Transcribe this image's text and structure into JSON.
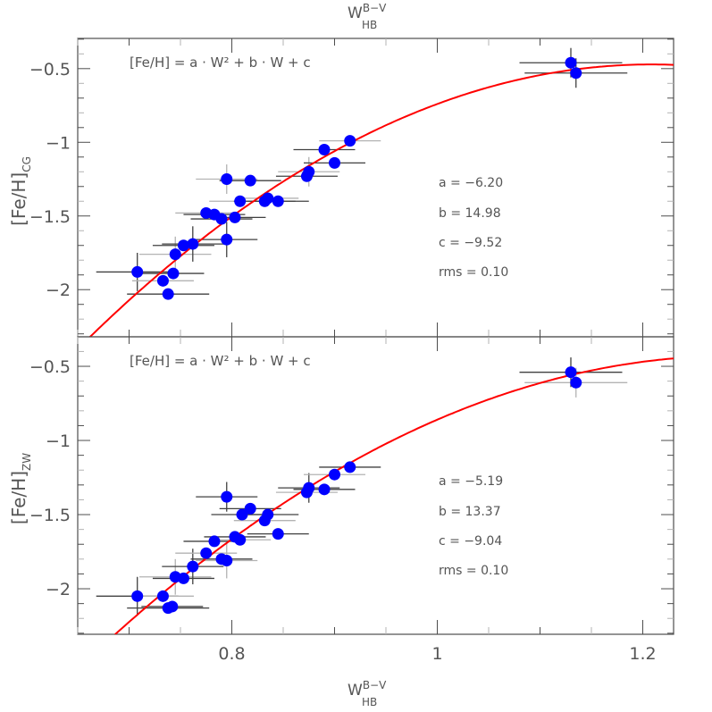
{
  "chart_data": [
    {
      "type": "scatter",
      "panel": "top",
      "title": "",
      "xlabel_top": "W_HB^(B-V)",
      "xlabel": "W_HB^(B-V)",
      "ylabel": "[Fe/H]_CG",
      "xlim": [
        0.65,
        1.23
      ],
      "ylim": [
        -2.32,
        -0.295
      ],
      "x_ticks": [
        0.8,
        1,
        1.2
      ],
      "x_tick_labels": [
        "0.8",
        "1",
        "1.2"
      ],
      "y_ticks": [
        -0.5,
        -1,
        -1.5,
        -2
      ],
      "y_tick_labels": [
        "−0.5",
        "−1",
        "−1.5",
        "−2"
      ],
      "equation": "[Fe/H] = a · W² + b · W + c",
      "fit": {
        "a": -6.2,
        "b": 14.98,
        "c": -9.52,
        "rms": 0.1
      },
      "fit_labels": [
        "a = −6.20",
        "b = 14.98",
        "c = −9.52",
        "rms = 0.10"
      ],
      "points": [
        {
          "x": 0.708,
          "y": -1.88,
          "xerr": 0.04,
          "yerr": 0.13
        },
        {
          "x": 0.733,
          "y": -1.94,
          "xerr": 0.03,
          "yerr": 0.0
        },
        {
          "x": 0.738,
          "y": -2.03,
          "xerr": 0.04,
          "yerr": 0.0
        },
        {
          "x": 0.743,
          "y": -1.89,
          "xerr": 0.03,
          "yerr": 0.0
        },
        {
          "x": 0.745,
          "y": -1.76,
          "xerr": 0.035,
          "yerr": 0.12
        },
        {
          "x": 0.753,
          "y": -1.7,
          "xerr": 0.03,
          "yerr": 0.0
        },
        {
          "x": 0.762,
          "y": -1.69,
          "xerr": 0.03,
          "yerr": 0.12
        },
        {
          "x": 0.775,
          "y": -1.48,
          "xerr": 0.03,
          "yerr": 0.0
        },
        {
          "x": 0.783,
          "y": -1.49,
          "xerr": 0.03,
          "yerr": 0.0
        },
        {
          "x": 0.79,
          "y": -1.52,
          "xerr": 0.03,
          "yerr": 0.0
        },
        {
          "x": 0.795,
          "y": -1.25,
          "xerr": 0.03,
          "yerr": 0.1
        },
        {
          "x": 0.795,
          "y": -1.66,
          "xerr": 0.03,
          "yerr": 0.12
        },
        {
          "x": 0.803,
          "y": -1.51,
          "xerr": 0.03,
          "yerr": 0.0
        },
        {
          "x": 0.808,
          "y": -1.4,
          "xerr": 0.03,
          "yerr": 0.0
        },
        {
          "x": 0.818,
          "y": -1.26,
          "xerr": 0.03,
          "yerr": 0.0
        },
        {
          "x": 0.832,
          "y": -1.4,
          "xerr": 0.03,
          "yerr": 0.0
        },
        {
          "x": 0.835,
          "y": -1.38,
          "xerr": 0.03,
          "yerr": 0.0
        },
        {
          "x": 0.845,
          "y": -1.4,
          "xerr": 0.03,
          "yerr": 0.0
        },
        {
          "x": 0.873,
          "y": -1.23,
          "xerr": 0.03,
          "yerr": 0.0
        },
        {
          "x": 0.875,
          "y": -1.2,
          "xerr": 0.03,
          "yerr": 0.1
        },
        {
          "x": 0.89,
          "y": -1.05,
          "xerr": 0.03,
          "yerr": 0.0
        },
        {
          "x": 0.9,
          "y": -1.14,
          "xerr": 0.03,
          "yerr": 0.0
        },
        {
          "x": 0.915,
          "y": -0.99,
          "xerr": 0.03,
          "yerr": 0.0
        },
        {
          "x": 1.13,
          "y": -0.46,
          "xerr": 0.05,
          "yerr": 0.1
        },
        {
          "x": 1.135,
          "y": -0.53,
          "xerr": 0.05,
          "yerr": 0.1
        }
      ]
    },
    {
      "type": "scatter",
      "panel": "bottom",
      "title": "",
      "xlabel": "W_HB^(B-V)",
      "ylabel": "[Fe/H]_ZW",
      "xlim": [
        0.65,
        1.23
      ],
      "ylim": [
        -2.307,
        -0.301
      ],
      "x_ticks": [
        0.8,
        1,
        1.2
      ],
      "x_tick_labels": [
        "0.8",
        "1",
        "1.2"
      ],
      "y_ticks": [
        -0.5,
        -1,
        -1.5,
        -2
      ],
      "y_tick_labels": [
        "−0.5",
        "−1",
        "−1.5",
        "−2"
      ],
      "equation": "[Fe/H] = a · W² + b · W + c",
      "fit": {
        "a": -5.19,
        "b": 13.37,
        "c": -9.04,
        "rms": 0.1
      },
      "fit_labels": [
        "a = −5.19",
        "b = 13.37",
        "c = −9.04",
        "rms = 0.10"
      ],
      "points": [
        {
          "x": 0.708,
          "y": -2.05,
          "xerr": 0.04,
          "yerr": 0.13
        },
        {
          "x": 0.733,
          "y": -2.05,
          "xerr": 0.03,
          "yerr": 0.0
        },
        {
          "x": 0.738,
          "y": -2.13,
          "xerr": 0.04,
          "yerr": 0.0
        },
        {
          "x": 0.742,
          "y": -2.12,
          "xerr": 0.03,
          "yerr": 0.0
        },
        {
          "x": 0.745,
          "y": -1.92,
          "xerr": 0.035,
          "yerr": 0.12
        },
        {
          "x": 0.753,
          "y": -1.93,
          "xerr": 0.03,
          "yerr": 0.0
        },
        {
          "x": 0.762,
          "y": -1.85,
          "xerr": 0.03,
          "yerr": 0.12
        },
        {
          "x": 0.775,
          "y": -1.76,
          "xerr": 0.03,
          "yerr": 0.0
        },
        {
          "x": 0.783,
          "y": -1.68,
          "xerr": 0.03,
          "yerr": 0.0
        },
        {
          "x": 0.79,
          "y": -1.8,
          "xerr": 0.03,
          "yerr": 0.0
        },
        {
          "x": 0.795,
          "y": -1.81,
          "xerr": 0.03,
          "yerr": 0.12
        },
        {
          "x": 0.795,
          "y": -1.38,
          "xerr": 0.03,
          "yerr": 0.1
        },
        {
          "x": 0.803,
          "y": -1.65,
          "xerr": 0.03,
          "yerr": 0.0
        },
        {
          "x": 0.808,
          "y": -1.67,
          "xerr": 0.03,
          "yerr": 0.0
        },
        {
          "x": 0.81,
          "y": -1.5,
          "xerr": 0.03,
          "yerr": 0.0
        },
        {
          "x": 0.818,
          "y": -1.46,
          "xerr": 0.03,
          "yerr": 0.0
        },
        {
          "x": 0.832,
          "y": -1.54,
          "xerr": 0.03,
          "yerr": 0.0
        },
        {
          "x": 0.835,
          "y": -1.5,
          "xerr": 0.03,
          "yerr": 0.0
        },
        {
          "x": 0.845,
          "y": -1.63,
          "xerr": 0.03,
          "yerr": 0.0
        },
        {
          "x": 0.873,
          "y": -1.35,
          "xerr": 0.03,
          "yerr": 0.0
        },
        {
          "x": 0.875,
          "y": -1.32,
          "xerr": 0.03,
          "yerr": 0.1
        },
        {
          "x": 0.89,
          "y": -1.33,
          "xerr": 0.03,
          "yerr": 0.0
        },
        {
          "x": 0.9,
          "y": -1.23,
          "xerr": 0.03,
          "yerr": 0.0
        },
        {
          "x": 0.915,
          "y": -1.18,
          "xerr": 0.03,
          "yerr": 0.0
        },
        {
          "x": 1.13,
          "y": -0.54,
          "xerr": 0.05,
          "yerr": 0.1
        },
        {
          "x": 1.135,
          "y": -0.61,
          "xerr": 0.05,
          "yerr": 0.1
        }
      ]
    }
  ],
  "labels": {
    "top_xlabel_main": "W",
    "top_xlabel_sup": "B−V",
    "top_xlabel_sub": "HB",
    "bottom_xlabel_main": "W",
    "bottom_xlabel_sup": "B−V",
    "bottom_xlabel_sub": "HB",
    "top_ylabel_main": "[Fe/H]",
    "top_ylabel_sub": "CG",
    "bottom_ylabel_main": "[Fe/H]",
    "bottom_ylabel_sub": "ZW",
    "equation": "[Fe/H] = a · W² + b · W + c"
  },
  "colors": {
    "points": "#0000ff",
    "fit_line": "#ff0000",
    "axes": "#4d4d4d",
    "error_bars_dark": "#404040",
    "error_bars_light": "#b3b3b3",
    "text": "#555555"
  }
}
